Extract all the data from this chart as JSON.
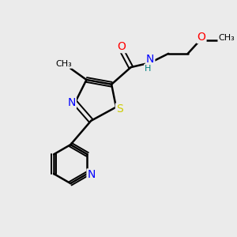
{
  "background_color": "#ebebeb",
  "bond_color": "#000000",
  "atom_colors": {
    "O": "#ff0000",
    "N": "#0000ff",
    "S": "#cccc00",
    "C": "#000000",
    "H": "#008080"
  }
}
